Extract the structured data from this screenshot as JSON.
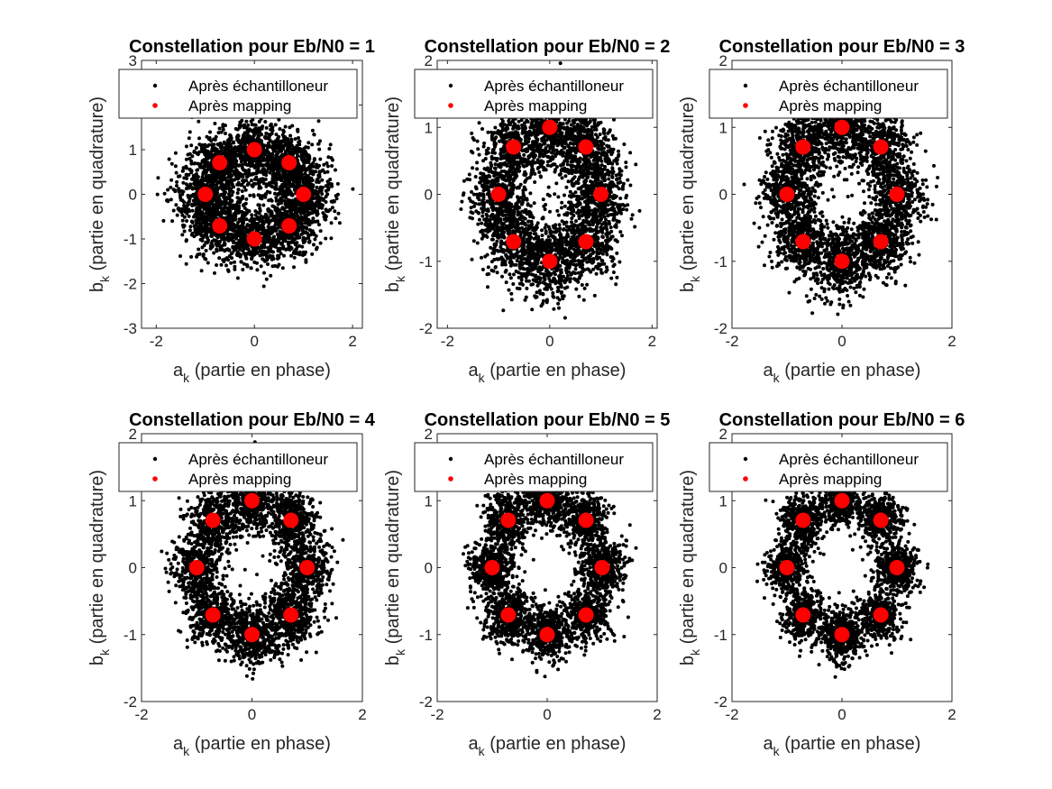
{
  "colors": {
    "received": "#000000",
    "mapped": "#ff0000",
    "axis": "#262626"
  },
  "chart_data": [
    {
      "type": "scatter",
      "title": "Constellation pour Eb/N0 = 1",
      "xlabel": {
        "base": "a",
        "sub": "k",
        "rest": " (partie en phase)"
      },
      "ylabel": {
        "base": "b",
        "sub": "k",
        "rest": " (partie en quadrature)"
      },
      "xlim": [
        -2.3,
        2.2
      ],
      "ylim": [
        -3,
        3
      ],
      "xticks": [
        -2,
        0,
        2
      ],
      "yticks": [
        -3,
        -2,
        -1,
        0,
        1,
        2,
        3
      ],
      "grid": false,
      "legend_position": "top",
      "noise_sigma": 0.33,
      "series": [
        {
          "name": "Après échantilloneur",
          "color": "#000000",
          "marker": "dot",
          "count": 3500
        },
        {
          "name": "Après mapping",
          "color": "#ff0000",
          "marker": "filled-circle",
          "x": [
            1,
            0.707,
            0,
            -0.707,
            -1,
            -0.707,
            0,
            0.707
          ],
          "y": [
            0,
            0.707,
            1,
            0.707,
            0,
            -0.707,
            -1,
            -0.707
          ]
        }
      ]
    },
    {
      "type": "scatter",
      "title": "Constellation pour Eb/N0 = 2",
      "xlabel": {
        "base": "a",
        "sub": "k",
        "rest": " (partie en phase)"
      },
      "ylabel": {
        "base": "b",
        "sub": "k",
        "rest": " (partie en quadrature)"
      },
      "xlim": [
        -2.2,
        2.1
      ],
      "ylim": [
        -2,
        2
      ],
      "xticks": [
        -2,
        0,
        2
      ],
      "yticks": [
        -2,
        -1,
        0,
        1,
        2
      ],
      "grid": false,
      "legend_position": "top",
      "noise_sigma": 0.29,
      "series": [
        {
          "name": "Après échantilloneur",
          "color": "#000000",
          "marker": "dot",
          "count": 3500
        },
        {
          "name": "Après mapping",
          "color": "#ff0000",
          "marker": "filled-circle",
          "x": [
            1,
            0.707,
            0,
            -0.707,
            -1,
            -0.707,
            0,
            0.707
          ],
          "y": [
            0,
            0.707,
            1,
            0.707,
            0,
            -0.707,
            -1,
            -0.707
          ]
        }
      ]
    },
    {
      "type": "scatter",
      "title": "Constellation pour Eb/N0 = 3",
      "xlabel": {
        "base": "a",
        "sub": "k",
        "rest": " (partie en phase)"
      },
      "ylabel": {
        "base": "b",
        "sub": "k",
        "rest": " (partie en quadrature)"
      },
      "xlim": [
        -2,
        2
      ],
      "ylim": [
        -2,
        2
      ],
      "xticks": [
        -2,
        0,
        2
      ],
      "yticks": [
        -2,
        -1,
        0,
        1,
        2
      ],
      "grid": false,
      "legend_position": "top",
      "noise_sigma": 0.26,
      "series": [
        {
          "name": "Après échantilloneur",
          "color": "#000000",
          "marker": "dot",
          "count": 3500
        },
        {
          "name": "Après mapping",
          "color": "#ff0000",
          "marker": "filled-circle",
          "x": [
            1,
            0.707,
            0,
            -0.707,
            -1,
            -0.707,
            0,
            0.707
          ],
          "y": [
            0,
            0.707,
            1,
            0.707,
            0,
            -0.707,
            -1,
            -0.707
          ]
        }
      ]
    },
    {
      "type": "scatter",
      "title": "Constellation pour Eb/N0 = 4",
      "xlabel": {
        "base": "a",
        "sub": "k",
        "rest": " (partie en phase)"
      },
      "ylabel": {
        "base": "b",
        "sub": "k",
        "rest": " (partie en quadrature)"
      },
      "xlim": [
        -2,
        2
      ],
      "ylim": [
        -2,
        2
      ],
      "xticks": [
        -2,
        0,
        2
      ],
      "yticks": [
        -2,
        -1,
        0,
        1,
        2
      ],
      "grid": false,
      "legend_position": "top",
      "noise_sigma": 0.23,
      "series": [
        {
          "name": "Après échantilloneur",
          "color": "#000000",
          "marker": "dot",
          "count": 3500
        },
        {
          "name": "Après mapping",
          "color": "#ff0000",
          "marker": "filled-circle",
          "x": [
            1,
            0.707,
            0,
            -0.707,
            -1,
            -0.707,
            0,
            0.707
          ],
          "y": [
            0,
            0.707,
            1,
            0.707,
            0,
            -0.707,
            -1,
            -0.707
          ]
        }
      ]
    },
    {
      "type": "scatter",
      "title": "Constellation pour Eb/N0 = 5",
      "xlabel": {
        "base": "a",
        "sub": "k",
        "rest": " (partie en phase)"
      },
      "ylabel": {
        "base": "b",
        "sub": "k",
        "rest": " (partie en quadrature)"
      },
      "xlim": [
        -2,
        2
      ],
      "ylim": [
        -2,
        2
      ],
      "xticks": [
        -2,
        0,
        2
      ],
      "yticks": [
        -2,
        -1,
        0,
        1,
        2
      ],
      "grid": false,
      "legend_position": "top",
      "noise_sigma": 0.205,
      "series": [
        {
          "name": "Après échantilloneur",
          "color": "#000000",
          "marker": "dot",
          "count": 3500
        },
        {
          "name": "Après mapping",
          "color": "#ff0000",
          "marker": "filled-circle",
          "x": [
            1,
            0.707,
            0,
            -0.707,
            -1,
            -0.707,
            0,
            0.707
          ],
          "y": [
            0,
            0.707,
            1,
            0.707,
            0,
            -0.707,
            -1,
            -0.707
          ]
        }
      ]
    },
    {
      "type": "scatter",
      "title": "Constellation pour Eb/N0 = 6",
      "xlabel": {
        "base": "a",
        "sub": "k",
        "rest": " (partie en phase)"
      },
      "ylabel": {
        "base": "b",
        "sub": "k",
        "rest": " (partie en quadrature)"
      },
      "xlim": [
        -2,
        2
      ],
      "ylim": [
        -2,
        2
      ],
      "xticks": [
        -2,
        0,
        2
      ],
      "yticks": [
        -2,
        -1,
        0,
        1,
        2
      ],
      "grid": false,
      "legend_position": "top",
      "noise_sigma": 0.185,
      "series": [
        {
          "name": "Après échantilloneur",
          "color": "#000000",
          "marker": "dot",
          "count": 3500
        },
        {
          "name": "Après mapping",
          "color": "#ff0000",
          "marker": "filled-circle",
          "x": [
            1,
            0.707,
            0,
            -0.707,
            -1,
            -0.707,
            0,
            0.707
          ],
          "y": [
            0,
            0.707,
            1,
            0.707,
            0,
            -0.707,
            -1,
            -0.707
          ]
        }
      ]
    }
  ]
}
